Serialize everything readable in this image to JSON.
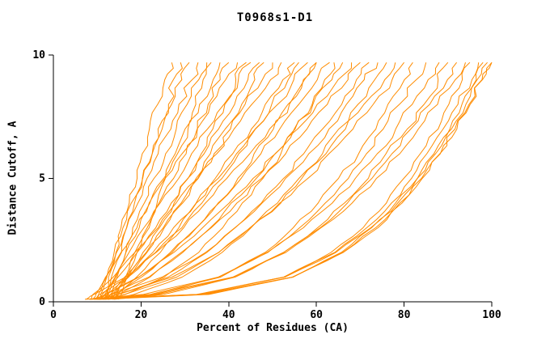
{
  "chart_data": {
    "type": "line",
    "title": "T0968s1-D1",
    "xlabel": "Percent of Residues (CA)",
    "ylabel": "Distance Cutoff, A",
    "xlim": [
      0,
      100
    ],
    "ylim": [
      0,
      10
    ],
    "x_ticks": [
      0,
      20,
      40,
      60,
      80,
      100
    ],
    "y_ticks": [
      0,
      5,
      10
    ],
    "grid": false,
    "legend": "none",
    "line_color": "#ff8c00",
    "axis_color": "#000000",
    "background": "#ffffff",
    "y_levels": [
      0.1,
      0.3,
      1,
      2,
      3,
      4,
      5,
      6,
      7,
      8,
      9,
      9.7
    ],
    "series": [
      [
        11.8,
        12.1,
        12.9,
        14.2,
        15.7,
        17.2,
        18.8,
        20.5,
        22.2,
        24.0,
        25.7,
        27.0
      ],
      [
        10.8,
        11.1,
        12.2,
        14.0,
        15.9,
        18.0,
        20.1,
        22.3,
        24.6,
        27.0,
        29.3,
        31.0
      ],
      [
        12.8,
        13.1,
        14.3,
        16.3,
        18.4,
        20.7,
        23.0,
        25.5,
        28.0,
        30.5,
        33.1,
        35.0
      ],
      [
        9.8,
        10.2,
        11.9,
        14.4,
        16.8,
        19.2,
        21.6,
        24.0,
        26.5,
        28.9,
        31.3,
        33.0
      ],
      [
        12.0,
        12.3,
        14.2,
        16.9,
        19.7,
        22.4,
        25.1,
        27.9,
        30.6,
        33.3,
        36.1,
        38.0
      ],
      [
        14.0,
        14.3,
        16.2,
        18.9,
        21.7,
        24.4,
        27.1,
        29.9,
        32.6,
        35.3,
        38.1,
        40.0
      ],
      [
        9.0,
        9.3,
        11.8,
        15.3,
        18.7,
        22.2,
        25.7,
        29.2,
        32.6,
        36.1,
        39.6,
        42.0
      ],
      [
        11.0,
        11.4,
        13.9,
        17.4,
        21.0,
        24.6,
        28.2,
        31.8,
        35.3,
        38.9,
        42.5,
        45.0
      ],
      [
        13.2,
        13.7,
        16.8,
        20.5,
        24.0,
        27.2,
        30.4,
        33.4,
        36.3,
        39.2,
        42.0,
        44.0
      ],
      [
        10.3,
        10.8,
        14.5,
        19.0,
        23.1,
        27.0,
        30.7,
        34.3,
        37.8,
        41.3,
        44.7,
        47.0
      ],
      [
        12.3,
        12.8,
        16.6,
        21.2,
        25.4,
        29.4,
        33.3,
        37.0,
        40.6,
        44.1,
        47.6,
        50.0
      ],
      [
        8.5,
        8.9,
        13.4,
        18.7,
        23.6,
        28.2,
        32.6,
        36.9,
        41.1,
        45.2,
        49.2,
        52.0
      ],
      [
        14.4,
        14.9,
        19.0,
        24.0,
        28.5,
        32.8,
        37.0,
        41.0,
        44.9,
        48.7,
        52.4,
        55.0
      ],
      [
        11.4,
        12.0,
        16.7,
        22.4,
        27.6,
        32.6,
        37.3,
        41.9,
        46.4,
        50.8,
        55.0,
        58.0
      ],
      [
        9.4,
        10.9,
        17.3,
        23.7,
        29.0,
        33.8,
        38.1,
        42.3,
        46.2,
        49.9,
        53.5,
        56.0
      ],
      [
        12.6,
        14.0,
        20.5,
        27.0,
        32.4,
        37.3,
        41.8,
        46.0,
        50.0,
        53.8,
        57.5,
        60.0
      ],
      [
        10.5,
        12.2,
        19.4,
        26.5,
        32.5,
        37.9,
        42.9,
        47.5,
        51.9,
        56.2,
        60.2,
        63.0
      ],
      [
        13.6,
        15.2,
        22.4,
        29.5,
        35.5,
        40.9,
        45.9,
        50.5,
        54.9,
        59.2,
        63.2,
        66.0
      ],
      [
        9.5,
        11.4,
        19.4,
        27.4,
        34.1,
        40.1,
        45.6,
        50.8,
        55.7,
        60.4,
        64.9,
        68.0
      ],
      [
        11.6,
        13.4,
        21.4,
        29.4,
        36.1,
        42.1,
        47.6,
        52.8,
        57.7,
        62.4,
        66.9,
        70.0
      ],
      [
        12.4,
        16.2,
        25.3,
        32.8,
        38.6,
        43.4,
        47.7,
        51.6,
        55.3,
        58.7,
        61.8,
        64.0
      ],
      [
        10.4,
        15.1,
        25.9,
        34.8,
        41.7,
        47.5,
        52.6,
        57.3,
        61.6,
        65.6,
        69.4,
        72.0
      ],
      [
        8.4,
        13.4,
        24.9,
        34.4,
        41.7,
        47.9,
        53.3,
        58.3,
        62.9,
        67.2,
        71.3,
        74.0
      ],
      [
        13.5,
        18.1,
        29.2,
        38.2,
        45.2,
        51.1,
        56.3,
        61.0,
        65.4,
        69.5,
        73.4,
        76.0
      ],
      [
        11.5,
        16.5,
        28.2,
        37.8,
        45.2,
        51.5,
        57.0,
        62.1,
        66.8,
        71.1,
        75.2,
        78.0
      ],
      [
        9.6,
        14.8,
        27.2,
        37.4,
        45.3,
        51.9,
        57.8,
        63.1,
        68.1,
        72.7,
        77.1,
        80.0
      ],
      [
        12.5,
        23.3,
        38.0,
        48.0,
        54.9,
        60.5,
        65.3,
        69.5,
        73.2,
        76.7,
        79.9,
        82.0
      ],
      [
        10.6,
        22.1,
        37.9,
        48.6,
        56.0,
        62.0,
        67.1,
        71.6,
        75.6,
        79.3,
        82.7,
        85.0
      ],
      [
        8.6,
        20.9,
        37.7,
        49.1,
        57.1,
        63.4,
        68.9,
        73.7,
        78.0,
        81.9,
        85.6,
        88.0
      ],
      [
        13.8,
        25.5,
        41.6,
        52.6,
        60.2,
        66.4,
        71.6,
        76.2,
        80.4,
        84.2,
        87.7,
        90.0
      ],
      [
        11.8,
        24.1,
        41.1,
        52.6,
        60.7,
        67.1,
        72.6,
        77.5,
        81.9,
        85.9,
        89.6,
        92.0
      ],
      [
        9.8,
        22.7,
        40.6,
        52.7,
        61.1,
        67.9,
        73.7,
        78.8,
        83.4,
        87.6,
        91.4,
        94.0
      ],
      [
        10.2,
        33.7,
        52.5,
        63.4,
        70.4,
        75.8,
        80.2,
        84.0,
        87.4,
        90.4,
        93.2,
        95.0
      ],
      [
        8.2,
        32.8,
        52.5,
        63.9,
        71.2,
        76.9,
        81.5,
        85.5,
        89.0,
        92.2,
        95.1,
        97.0
      ],
      [
        11.2,
        35.3,
        54.5,
        65.6,
        72.8,
        78.3,
        82.9,
        86.8,
        90.2,
        93.3,
        96.2,
        98.0
      ],
      [
        9.2,
        34.4,
        54.5,
        66.1,
        73.6,
        79.4,
        84.2,
        88.3,
        91.9,
        95.1,
        98.1,
        100.0
      ],
      [
        7.2,
        32.7,
        53.0,
        64.7,
        72.3,
        78.2,
        83.0,
        87.1,
        90.8,
        94.1,
        97.0,
        99.0
      ],
      [
        10.0,
        35.1,
        55.0,
        66.5,
        73.9,
        79.6,
        84.3,
        88.4,
        92.0,
        95.2,
        98.1,
        100.0
      ],
      [
        11.9,
        12.2,
        13.4,
        15.2,
        17.0,
        18.8,
        20.6,
        22.4,
        24.2,
        26.0,
        27.7,
        29.0
      ],
      [
        14.8,
        15.2,
        16.8,
        19.0,
        21.2,
        23.4,
        25.6,
        27.8,
        30.0,
        32.2,
        34.5,
        36.0
      ],
      [
        13.3,
        13.7,
        17.3,
        21.5,
        25.4,
        29.1,
        32.6,
        36.0,
        39.3,
        42.6,
        45.8,
        48.0
      ],
      [
        7.5,
        9.2,
        16.4,
        23.5,
        29.5,
        34.9,
        39.9,
        44.5,
        48.9,
        53.2,
        57.2,
        60.0
      ]
    ]
  }
}
